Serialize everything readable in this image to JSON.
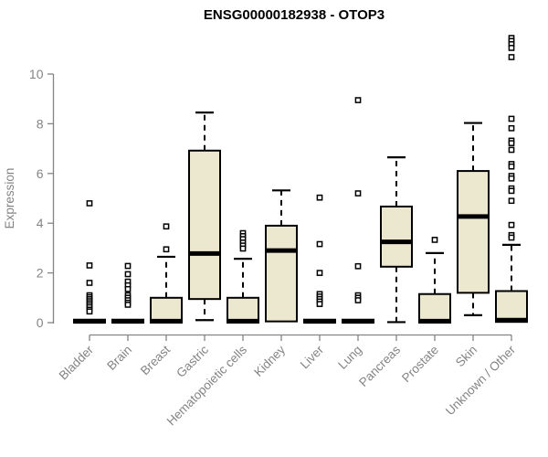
{
  "title": "ENSG00000182938 - OTOP3",
  "chart_data": {
    "type": "boxplot",
    "title": "ENSG00000182938 - OTOP3",
    "xlabel": "",
    "ylabel": "Expression",
    "ylim": [
      0,
      11.6
    ],
    "yticks": [
      0,
      2,
      4,
      6,
      8,
      10
    ],
    "grid": false,
    "legend": null,
    "colors": {
      "box_fill": "#ece7cf",
      "box_stroke": "#000000",
      "median": "#000000",
      "whisker": "#000000",
      "outlier_fill": "#ffffff",
      "outlier_stroke": "#000000",
      "axis": "#848484",
      "title": "#000000",
      "background": "#ffffff"
    },
    "categories": [
      "Bladder",
      "Brain",
      "Breast",
      "Gastric",
      "Hematopoietic cells",
      "Kidney",
      "Liver",
      "Lung",
      "Pancreas",
      "Prostate",
      "Skin",
      "Unknown / Other"
    ],
    "series": [
      {
        "category": "Bladder",
        "q1": 0,
        "median": 0.05,
        "q3": 0.12,
        "whisker_low": null,
        "whisker_high": null,
        "outliers": [
          4.8,
          2.3,
          1.6,
          1.1,
          1.02,
          0.94,
          0.86,
          0.78,
          0.7,
          0.62,
          0.52,
          0.45
        ]
      },
      {
        "category": "Brain",
        "q1": 0,
        "median": 0.05,
        "q3": 0.12,
        "whisker_low": null,
        "whisker_high": null,
        "outliers": [
          2.28,
          1.95,
          1.65,
          1.5,
          1.35,
          1.1,
          1.0,
          0.9,
          0.8,
          0.72
        ]
      },
      {
        "category": "Breast",
        "q1": 0,
        "median": 0.06,
        "q3": 1.0,
        "whisker_low": null,
        "whisker_high": 2.65,
        "outliers": [
          3.87,
          2.95
        ]
      },
      {
        "category": "Gastric",
        "q1": 0.95,
        "median": 2.78,
        "q3": 6.92,
        "whisker_low": 0.1,
        "whisker_high": 8.45,
        "outliers": []
      },
      {
        "category": "Hematopoietic cells",
        "q1": 0,
        "median": 0.06,
        "q3": 1.0,
        "whisker_low": null,
        "whisker_high": 2.57,
        "outliers": [
          3.6,
          3.48,
          3.36,
          3.22,
          3.1,
          2.98
        ]
      },
      {
        "category": "Kidney",
        "q1": 0.05,
        "median": 2.9,
        "q3": 3.9,
        "whisker_low": null,
        "whisker_high": 5.32,
        "outliers": []
      },
      {
        "category": "Liver",
        "q1": 0,
        "median": 0.05,
        "q3": 0.12,
        "whisker_low": null,
        "whisker_high": null,
        "outliers": [
          5.03,
          3.16,
          2.0,
          1.15,
          1.05,
          0.95,
          0.85,
          0.75
        ]
      },
      {
        "category": "Lung",
        "q1": 0,
        "median": 0.05,
        "q3": 0.12,
        "whisker_low": null,
        "whisker_high": null,
        "outliers": [
          8.95,
          5.2,
          2.27,
          1.1,
          1.0,
          0.9
        ]
      },
      {
        "category": "Pancreas",
        "q1": 2.25,
        "median": 3.25,
        "q3": 4.67,
        "whisker_low": 0.02,
        "whisker_high": 6.65,
        "outliers": []
      },
      {
        "category": "Prostate",
        "q1": 0,
        "median": 0.06,
        "q3": 1.15,
        "whisker_low": null,
        "whisker_high": 2.8,
        "outliers": [
          3.33
        ]
      },
      {
        "category": "Skin",
        "q1": 1.2,
        "median": 4.27,
        "q3": 6.1,
        "whisker_low": 0.3,
        "whisker_high": 8.03,
        "outliers": []
      },
      {
        "category": "Unknown / Other",
        "q1": 0.03,
        "median": 0.1,
        "q3": 1.27,
        "whisker_low": null,
        "whisker_high": 3.13,
        "outliers": [
          11.45,
          11.33,
          11.2,
          11.05,
          10.68,
          8.2,
          7.82,
          7.32,
          7.22,
          6.95,
          6.38,
          6.28,
          5.9,
          5.8,
          5.4,
          5.3,
          4.9,
          3.93,
          3.52,
          3.42
        ]
      }
    ]
  }
}
